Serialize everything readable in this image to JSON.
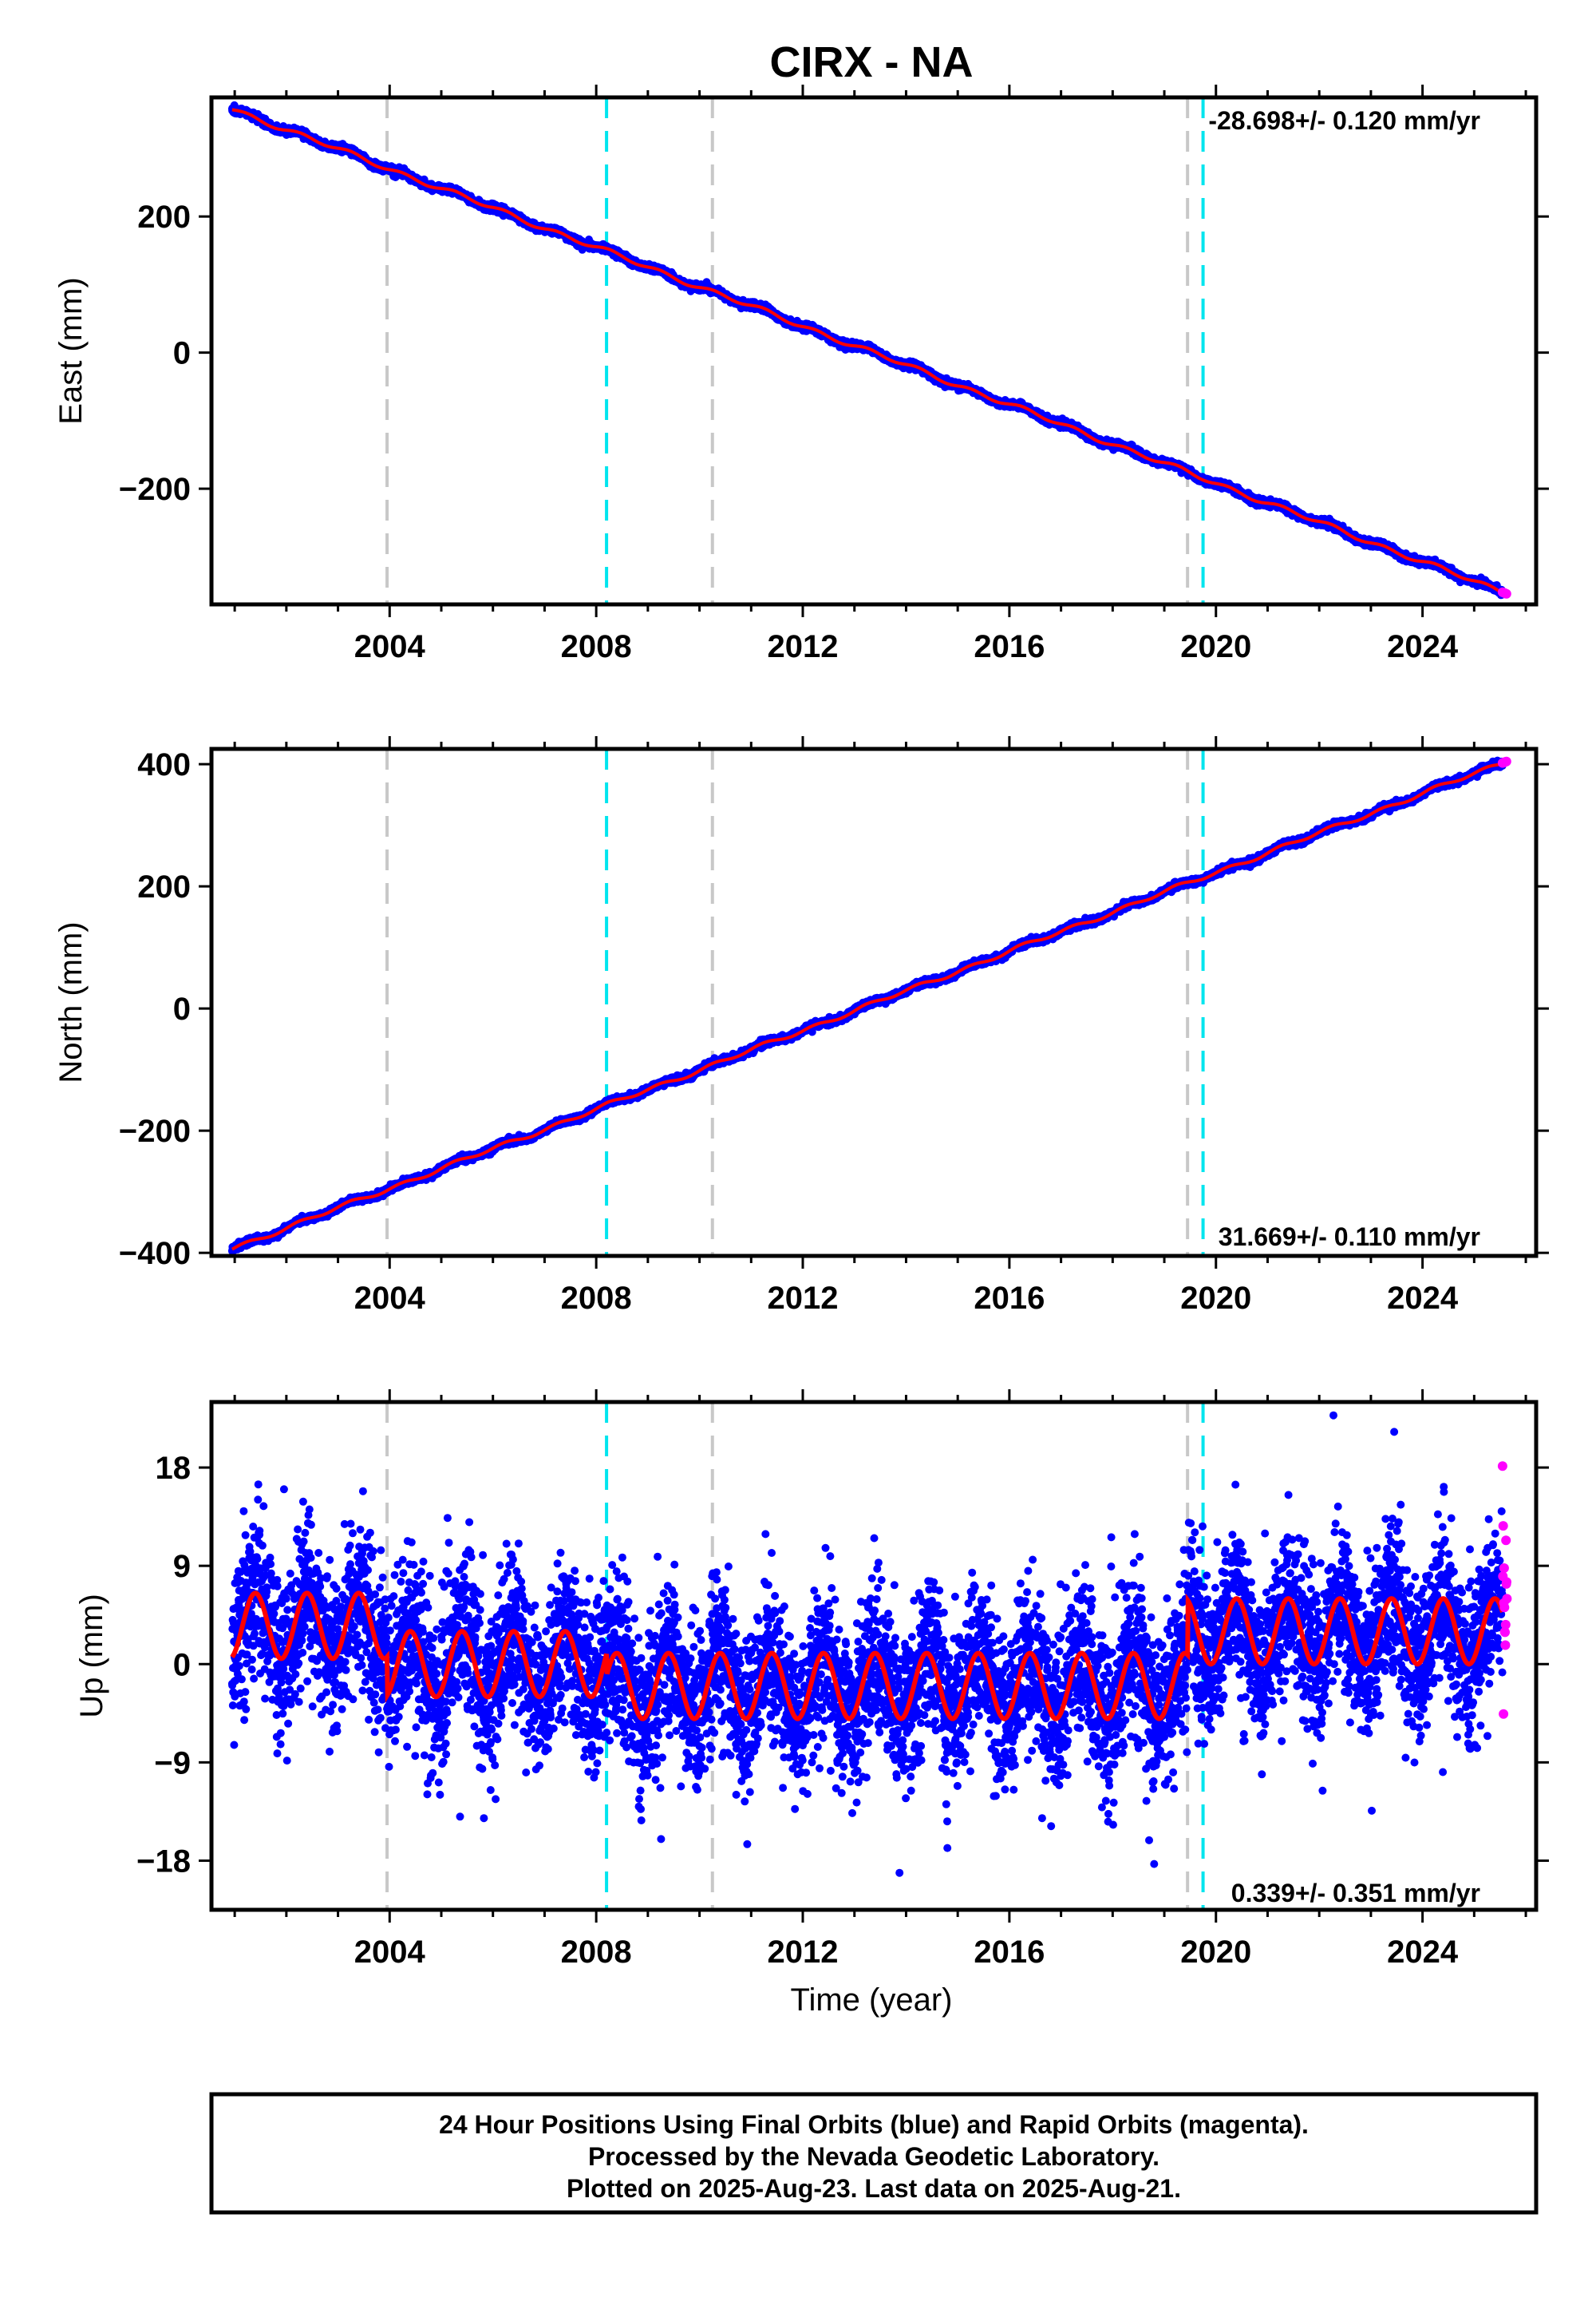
{
  "title": "CIRX - NA",
  "colors": {
    "final_orbits": "#0000ff",
    "rapid_orbits": "#ff00ff",
    "model_fit": "#ff0000",
    "antenna_change": "#c8c8c8",
    "equipment_change": "#00e5ee"
  },
  "x_axis": {
    "label": "Time (year)",
    "range": [
      2000.55,
      2026.2
    ],
    "ticks": [
      "2004",
      "2008",
      "2012",
      "2016",
      "2020",
      "2024"
    ],
    "tick_values": [
      2004,
      2008,
      2012,
      2016,
      2020,
      2024
    ],
    "minor_step": 1
  },
  "events": {
    "gray": [
      2003.95,
      2010.25,
      2019.45
    ],
    "cyan": [
      2008.2,
      2019.75
    ]
  },
  "chart_data": [
    {
      "type": "scatter",
      "ylabel": "East (mm)",
      "ylim": [
        -370,
        375
      ],
      "yticks": [
        -200,
        0,
        200
      ],
      "ytick_labels": [
        "−200",
        "0",
        "200"
      ],
      "rate": "-28.698+/- 0.120 mm/yr",
      "rate_position": "top-right",
      "series": [
        {
          "name": "Final Orbits (blue)",
          "x_start": 2000.95,
          "x_end": 2025.55,
          "y_start": 358,
          "y_end": -352
        },
        {
          "name": "Rapid Orbits (magenta)",
          "x_start": 2025.55,
          "x_end": 2025.64,
          "y_start": -352,
          "y_end": -355
        }
      ],
      "model": {
        "intercept_at_2000.95": 358,
        "rate_mm_per_yr": -28.698
      }
    },
    {
      "type": "scatter",
      "ylabel": "North (mm)",
      "ylim": [
        -405,
        425
      ],
      "yticks": [
        -400,
        -200,
        0,
        200,
        400
      ],
      "ytick_labels": [
        "−400",
        "−200",
        "0",
        "200",
        "400"
      ],
      "rate": "31.669+/- 0.110 mm/yr",
      "rate_position": "bottom-right",
      "series": [
        {
          "name": "Final Orbits (blue)",
          "x_start": 2000.95,
          "x_end": 2025.55,
          "y_start": -393,
          "y_end": 402
        },
        {
          "name": "Rapid Orbits (magenta)",
          "x_start": 2025.55,
          "x_end": 2025.64,
          "y_start": 402,
          "y_end": 405
        }
      ],
      "model": {
        "intercept_at_2000.95": -393,
        "rate_mm_per_yr": 31.669
      }
    },
    {
      "type": "scatter",
      "ylabel": "Up (mm)",
      "ylim": [
        -22.5,
        24
      ],
      "yticks": [
        -18,
        -9,
        0,
        9,
        18
      ],
      "ytick_labels": [
        "−18",
        "−9",
        "0",
        "9",
        "18"
      ],
      "rate": "0.339+/- 0.351 mm/yr",
      "rate_position": "bottom-right",
      "series": [
        {
          "name": "Final Orbits (blue)",
          "x_start": 2000.95,
          "x_end": 2025.55,
          "scatter_std_mm": 3.6
        },
        {
          "name": "Rapid Orbits (magenta)",
          "x_start": 2025.55,
          "x_end": 2025.64
        }
      ],
      "model": {
        "seasonal_amplitude_mm": 3.0,
        "segments": [
          {
            "from": 2000.95,
            "to": 2003.95,
            "offset_mm": 3.5
          },
          {
            "from": 2003.95,
            "to": 2008.2,
            "offset_mm": 0.0
          },
          {
            "from": 2008.2,
            "to": 2019.45,
            "offset_mm": -2.0
          },
          {
            "from": 2019.45,
            "to": 2025.64,
            "offset_mm": 3.0
          }
        ]
      }
    }
  ],
  "footer": {
    "line1": "24 Hour Positions Using Final Orbits (blue) and Rapid Orbits (magenta).",
    "line2": "Processed by the Nevada Geodetic Laboratory.",
    "line3": "Plotted on 2025-Aug-23. Last data on 2025-Aug-21."
  }
}
